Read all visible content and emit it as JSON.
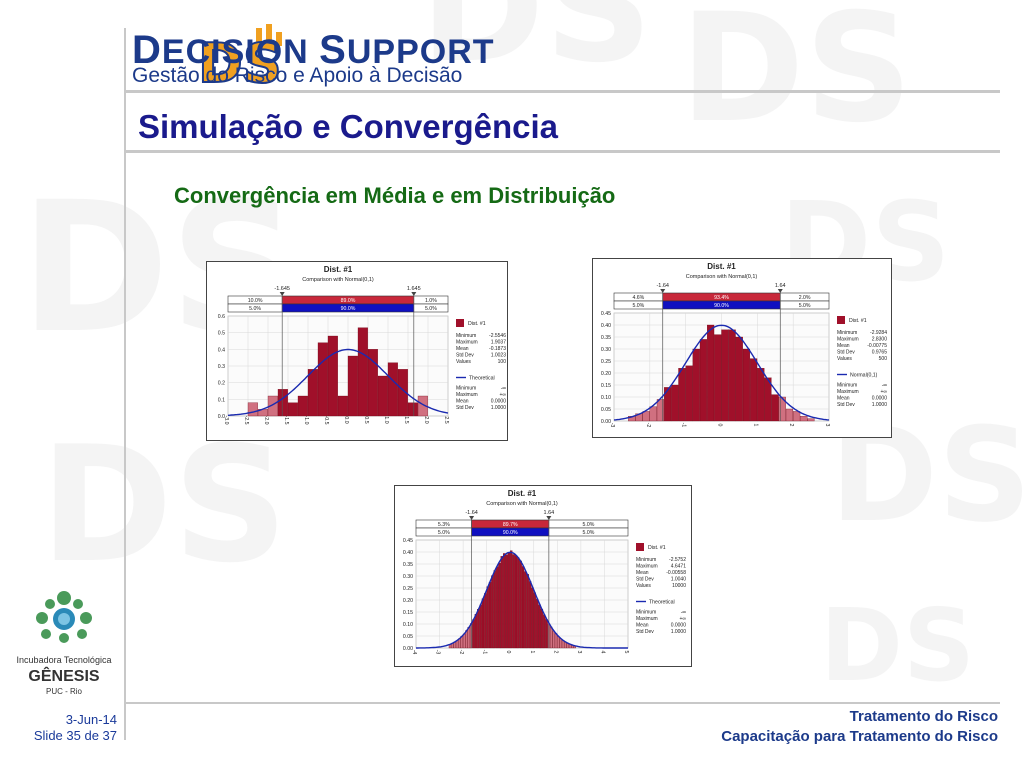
{
  "brand": {
    "initials": "DS",
    "name": "Decision Support",
    "tagline": "Gestão do Risco e Apoio à Decisão",
    "color": "#1c3a8a",
    "accent": "#f0a020"
  },
  "slide": {
    "title": "Simulação e Convergência",
    "subtitle": "Convergência em Média e em Distribuição",
    "date": "3-Jun-14",
    "number": "Slide 35 de 37"
  },
  "incubator": {
    "line1": "Incubadora Tecnológica",
    "line2": "GÊNESIS",
    "line3": "PUC - Rio"
  },
  "footer": {
    "line1": "Tratamento do Risco",
    "line2": "Capacitação para Tratamento do Risco"
  },
  "watermark_text": "DS",
  "chart_data": [
    {
      "type": "bar",
      "title": "Dist. #1",
      "subtitle": "Comparison with Normal(0,1)",
      "markers": [
        "-1.645",
        "1.645"
      ],
      "band_top": [
        "10.0%",
        "89.0%",
        "1.0%"
      ],
      "band_bottom": [
        "5.0%",
        "90.0%",
        "5.0%"
      ],
      "x": [
        -3.0,
        -2.5,
        -2.0,
        -1.5,
        -1.0,
        -0.5,
        0.0,
        0.5,
        1.0,
        1.5,
        2.0,
        2.5
      ],
      "x_tick_labels": [
        "-3.0",
        "-2.5",
        "-2.0",
        "-1.5",
        "-1.0",
        "-0.5",
        "0.0",
        "0.5",
        "1.0",
        "1.5",
        "2.0",
        "2.5"
      ],
      "y_tick_labels": [
        "0.0",
        "0.1",
        "0.2",
        "0.3",
        "0.4",
        "0.5",
        "0.6"
      ],
      "ylim": [
        0,
        0.6
      ],
      "xlim": [
        -3.0,
        2.5
      ],
      "bin_width": 0.25,
      "bins": [
        {
          "x": -2.5,
          "v": 0.08
        },
        {
          "x": -2.25,
          "v": 0.04
        },
        {
          "x": -2.0,
          "v": 0.12
        },
        {
          "x": -1.75,
          "v": 0.16
        },
        {
          "x": -1.5,
          "v": 0.08
        },
        {
          "x": -1.25,
          "v": 0.12
        },
        {
          "x": -1.0,
          "v": 0.28
        },
        {
          "x": -0.75,
          "v": 0.44
        },
        {
          "x": -0.5,
          "v": 0.48
        },
        {
          "x": -0.25,
          "v": 0.12
        },
        {
          "x": 0.0,
          "v": 0.36
        },
        {
          "x": 0.25,
          "v": 0.53
        },
        {
          "x": 0.5,
          "v": 0.4
        },
        {
          "x": 0.75,
          "v": 0.24
        },
        {
          "x": 1.0,
          "v": 0.32
        },
        {
          "x": 1.25,
          "v": 0.28
        },
        {
          "x": 1.5,
          "v": 0.08
        },
        {
          "x": 1.75,
          "v": 0.12
        }
      ],
      "curve": "normal(0,1)",
      "stats_title": "Dist. #1",
      "stats": [
        [
          "Minimum",
          "-2.5546"
        ],
        [
          "Maximum",
          "1.9037"
        ],
        [
          "Mean",
          "-0.1873"
        ],
        [
          "Std Dev",
          "1.0023"
        ],
        [
          "Values",
          "100"
        ]
      ],
      "theo_title": "Theoretical",
      "theo": [
        [
          "Minimum",
          "-∞"
        ],
        [
          "Maximum",
          "+∞"
        ],
        [
          "Mean",
          "0.0000"
        ],
        [
          "Std Dev",
          "1.0000"
        ]
      ],
      "bar_color": "#a0102a",
      "curve_color": "#1a2ab0"
    },
    {
      "type": "bar",
      "title": "Dist. #1",
      "subtitle": "Comparison with Normal(0,1)",
      "markers": [
        "-1.64",
        "1.64"
      ],
      "band_top": [
        "4.6%",
        "93.4%",
        "2.0%"
      ],
      "band_bottom": [
        "5.0%",
        "90.0%",
        "5.0%"
      ],
      "x_tick_labels": [
        "-3",
        "-2",
        "-1",
        "0",
        "1",
        "2",
        "3"
      ],
      "y_tick_labels": [
        "0.00",
        "0.05",
        "0.10",
        "0.15",
        "0.20",
        "0.25",
        "0.30",
        "0.35",
        "0.40",
        "0.45"
      ],
      "ylim": [
        0,
        0.45
      ],
      "xlim": [
        -3,
        3
      ],
      "bin_width": 0.2,
      "bins": [
        {
          "x": -2.6,
          "v": 0.02
        },
        {
          "x": -2.4,
          "v": 0.03
        },
        {
          "x": -2.2,
          "v": 0.04
        },
        {
          "x": -2.0,
          "v": 0.06
        },
        {
          "x": -1.8,
          "v": 0.09
        },
        {
          "x": -1.6,
          "v": 0.14
        },
        {
          "x": -1.4,
          "v": 0.15
        },
        {
          "x": -1.2,
          "v": 0.22
        },
        {
          "x": -1.0,
          "v": 0.23
        },
        {
          "x": -0.8,
          "v": 0.3
        },
        {
          "x": -0.6,
          "v": 0.34
        },
        {
          "x": -0.4,
          "v": 0.4
        },
        {
          "x": -0.2,
          "v": 0.36
        },
        {
          "x": 0.0,
          "v": 0.38
        },
        {
          "x": 0.2,
          "v": 0.38
        },
        {
          "x": 0.4,
          "v": 0.35
        },
        {
          "x": 0.6,
          "v": 0.3
        },
        {
          "x": 0.8,
          "v": 0.26
        },
        {
          "x": 1.0,
          "v": 0.22
        },
        {
          "x": 1.2,
          "v": 0.18
        },
        {
          "x": 1.4,
          "v": 0.11
        },
        {
          "x": 1.6,
          "v": 0.1
        },
        {
          "x": 1.8,
          "v": 0.05
        },
        {
          "x": 2.0,
          "v": 0.04
        },
        {
          "x": 2.2,
          "v": 0.02
        },
        {
          "x": 2.4,
          "v": 0.01
        }
      ],
      "curve": "normal(0,1)",
      "stats_title": "Dist. #1",
      "stats": [
        [
          "Minimum",
          "-2.9284"
        ],
        [
          "Maximum",
          "2.8300"
        ],
        [
          "Mean",
          "-0.00775"
        ],
        [
          "Std Dev",
          "0.9765"
        ],
        [
          "Values",
          "500"
        ]
      ],
      "theo_title": "Normal(0,1)",
      "theo": [
        [
          "Minimum",
          "-∞"
        ],
        [
          "Maximum",
          "+∞"
        ],
        [
          "Mean",
          "0.0000"
        ],
        [
          "Std Dev",
          "1.0000"
        ]
      ],
      "bar_color": "#a0102a",
      "curve_color": "#1a2ab0"
    },
    {
      "type": "bar",
      "title": "Dist. #1",
      "subtitle": "Comparison with Normal(0,1)",
      "markers": [
        "-1.64",
        "1.64"
      ],
      "band_top": [
        "5.3%",
        "89.7%",
        "5.0%"
      ],
      "band_bottom": [
        "5.0%",
        "90.0%",
        "5.0%"
      ],
      "x_tick_labels": [
        "-4",
        "-3",
        "-2",
        "-1",
        "0",
        "1",
        "2",
        "3",
        "4",
        "5"
      ],
      "y_tick_labels": [
        "0.00",
        "0.05",
        "0.10",
        "0.15",
        "0.20",
        "0.25",
        "0.30",
        "0.35",
        "0.40",
        "0.45"
      ],
      "ylim": [
        0,
        0.45
      ],
      "xlim": [
        -4,
        5
      ],
      "bin_width": 0.1,
      "bins": "normal_density_with_noise",
      "curve": "normal(0,1)",
      "stats_title": "Dist. #1",
      "stats": [
        [
          "Minimum",
          "-2.5752"
        ],
        [
          "Maximum",
          "4.6471"
        ],
        [
          "Mean",
          "-0.00558"
        ],
        [
          "Std Dev",
          "1.0040"
        ],
        [
          "Values",
          "10000"
        ]
      ],
      "theo_title": "Theoretical",
      "theo": [
        [
          "Minimum",
          "-∞"
        ],
        [
          "Maximum",
          "+∞"
        ],
        [
          "Mean",
          "0.0000"
        ],
        [
          "Std Dev",
          "1.0000"
        ]
      ],
      "bar_color": "#a0102a",
      "curve_color": "#1a2ab0"
    }
  ]
}
